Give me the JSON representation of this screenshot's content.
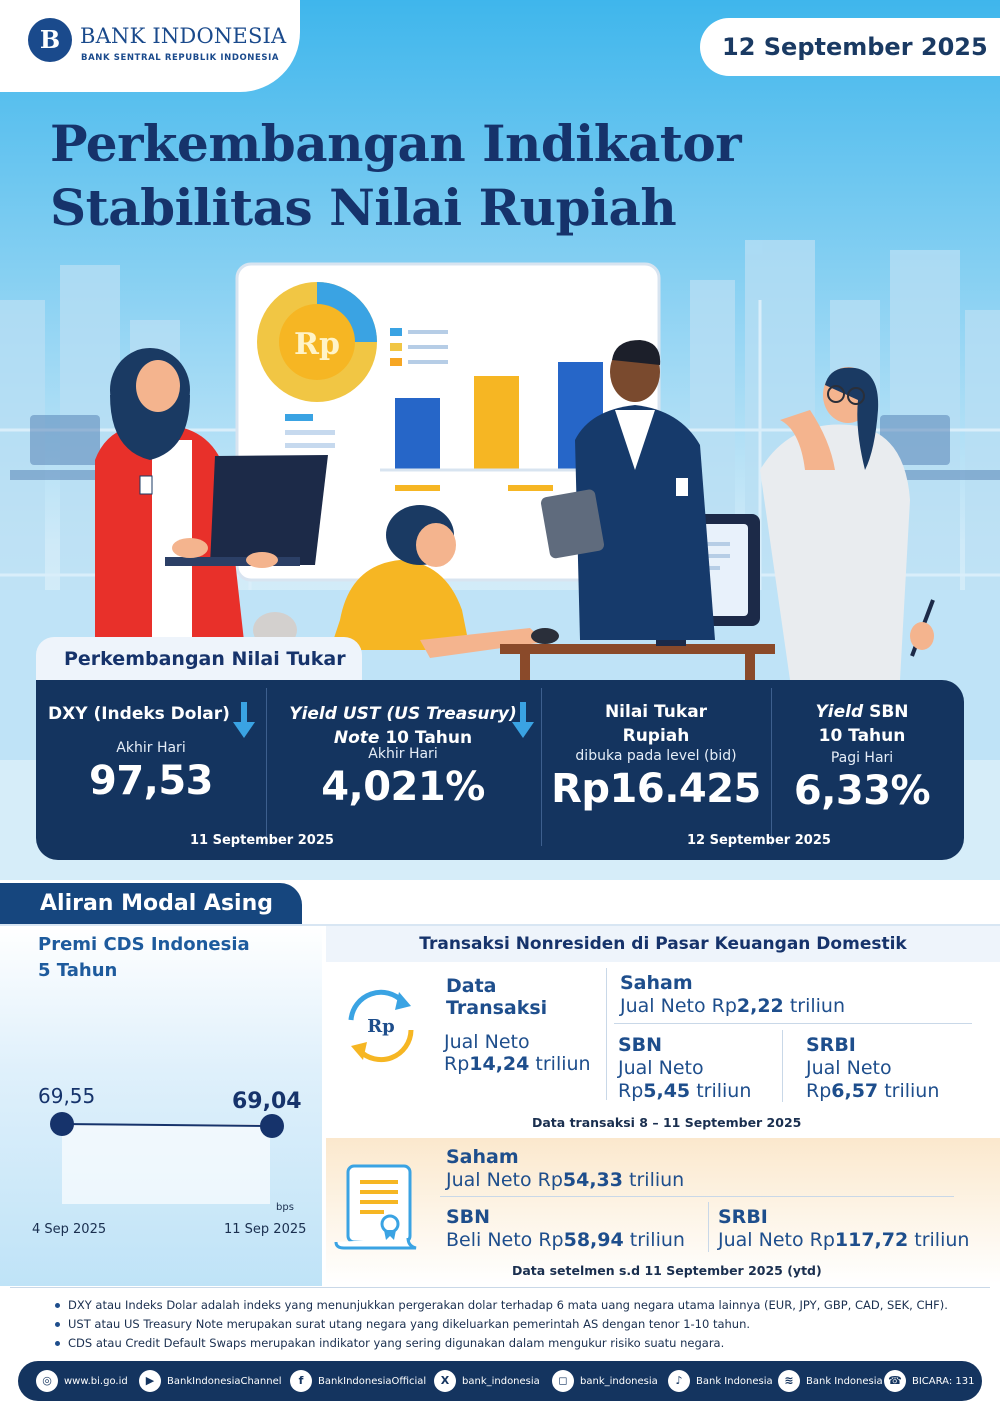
{
  "header": {
    "logo_mark": "B",
    "logo_name": "BANK INDONESIA",
    "logo_sub": "BANK SENTRAL REPUBLIK INDONESIA",
    "date": "12 September 2025",
    "title_line1": "Perkembangan Indikator",
    "title_line2": "Stabilitas Nilai Rupiah",
    "illustration_coin": "Rp"
  },
  "nilai_tukar": {
    "tab_label": "Perkembangan Nilai Tukar",
    "columns": [
      {
        "head1": "DXY (Indeks Dolar)",
        "head2": "",
        "sub": "Akhir Hari",
        "value": "97,53",
        "trend": "down"
      },
      {
        "head1_italic": "Yield UST (US Treasury)",
        "head2_italic": "Note",
        "head2_rest": " 10 Tahun",
        "sub": "Akhir Hari",
        "value": "4,021%",
        "trend": "down"
      },
      {
        "head1": "Nilai Tukar",
        "head2": "Rupiah",
        "sub": "dibuka pada level (bid)",
        "value": "Rp16.425"
      },
      {
        "head1_italic": "Yield",
        "head1_rest": " SBN",
        "head2": "10 Tahun",
        "sub": "Pagi Hari",
        "value": "6,33%"
      }
    ],
    "date_left": "11 September 2025",
    "date_right": "12 September 2025",
    "colors": {
      "card": "#14345f",
      "arrow": "#3aa3e3"
    }
  },
  "aliran_modal": {
    "tab_label": "Aliran Modal Asing",
    "cds": {
      "title_line1": "Premi CDS Indonesia",
      "title_line2": "5 Tahun",
      "unit": "bps",
      "points": [
        {
          "date": "4 Sep 2025",
          "value": "69,55"
        },
        {
          "date": "11 Sep 2025",
          "value": "69,04"
        }
      ]
    },
    "transaksi": {
      "header": "Transaksi Nonresiden di Pasar Keuangan Domestik",
      "icon_label": "Rp",
      "data_label_line1": "Data",
      "data_label_line2": "Transaksi",
      "total_line1": "Jual Neto",
      "total_prefix": "Rp",
      "total_value": "14,24",
      "total_suffix": " triliun",
      "saham_label": "Saham",
      "saham_text": "Jual Neto Rp",
      "saham_value": "2,22",
      "saham_suffix": " triliun",
      "sbn_label": "SBN",
      "sbn_line1": "Jual Neto",
      "sbn_prefix": "Rp",
      "sbn_value": "5,45",
      "sbn_suffix": " triliun",
      "srbi_label": "SRBI",
      "srbi_line1": "Jual Neto",
      "srbi_prefix": "Rp",
      "srbi_value": "6,57",
      "srbi_suffix": " triliun",
      "note": "Data transaksi 8 – 11 September 2025"
    },
    "setelmen": {
      "saham_label": "Saham",
      "saham_text": "Jual Neto Rp",
      "saham_value": "54,33",
      "saham_suffix": "  triliun",
      "sbn_label": "SBN",
      "sbn_text": "Beli Neto Rp",
      "sbn_value": "58,94",
      "sbn_suffix": " triliun",
      "srbi_label": "SRBI",
      "srbi_text": "Jual Neto Rp",
      "srbi_value": "117,72",
      "srbi_suffix": " triliun",
      "note": "Data setelmen s.d 11 September 2025 (ytd)"
    }
  },
  "notes": [
    "DXY atau Indeks Dolar adalah indeks yang menunjukkan pergerakan dolar terhadap 6 mata uang negara utama lainnya (EUR, JPY, GBP, CAD, SEK, CHF).",
    "UST atau US Treasury Note merupakan surat utang negara yang dikeluarkan  pemerintah AS dengan tenor 1-10 tahun.",
    "CDS atau Credit Default Swaps merupakan indikator  yang sering digunakan dalam mengukur risiko suatu negara."
  ],
  "social": [
    {
      "icon": "globe-icon",
      "glyph": "◎",
      "label": "www.bi.go.id"
    },
    {
      "icon": "youtube-icon",
      "glyph": "▶",
      "label": "BankIndonesiaChannel"
    },
    {
      "icon": "facebook-icon",
      "glyph": "f",
      "label": "BankIndonesiaOfficial"
    },
    {
      "icon": "x-icon",
      "glyph": "X",
      "label": "bank_indonesia"
    },
    {
      "icon": "instagram-icon",
      "glyph": "◻",
      "label": "bank_indonesia"
    },
    {
      "icon": "tiktok-icon",
      "glyph": "♪",
      "label": "Bank Indonesia"
    },
    {
      "icon": "spotify-icon",
      "glyph": "≋",
      "label": "Bank Indonesia"
    },
    {
      "icon": "bicara-icon",
      "glyph": "☎",
      "label": "BICARA: 131"
    }
  ]
}
